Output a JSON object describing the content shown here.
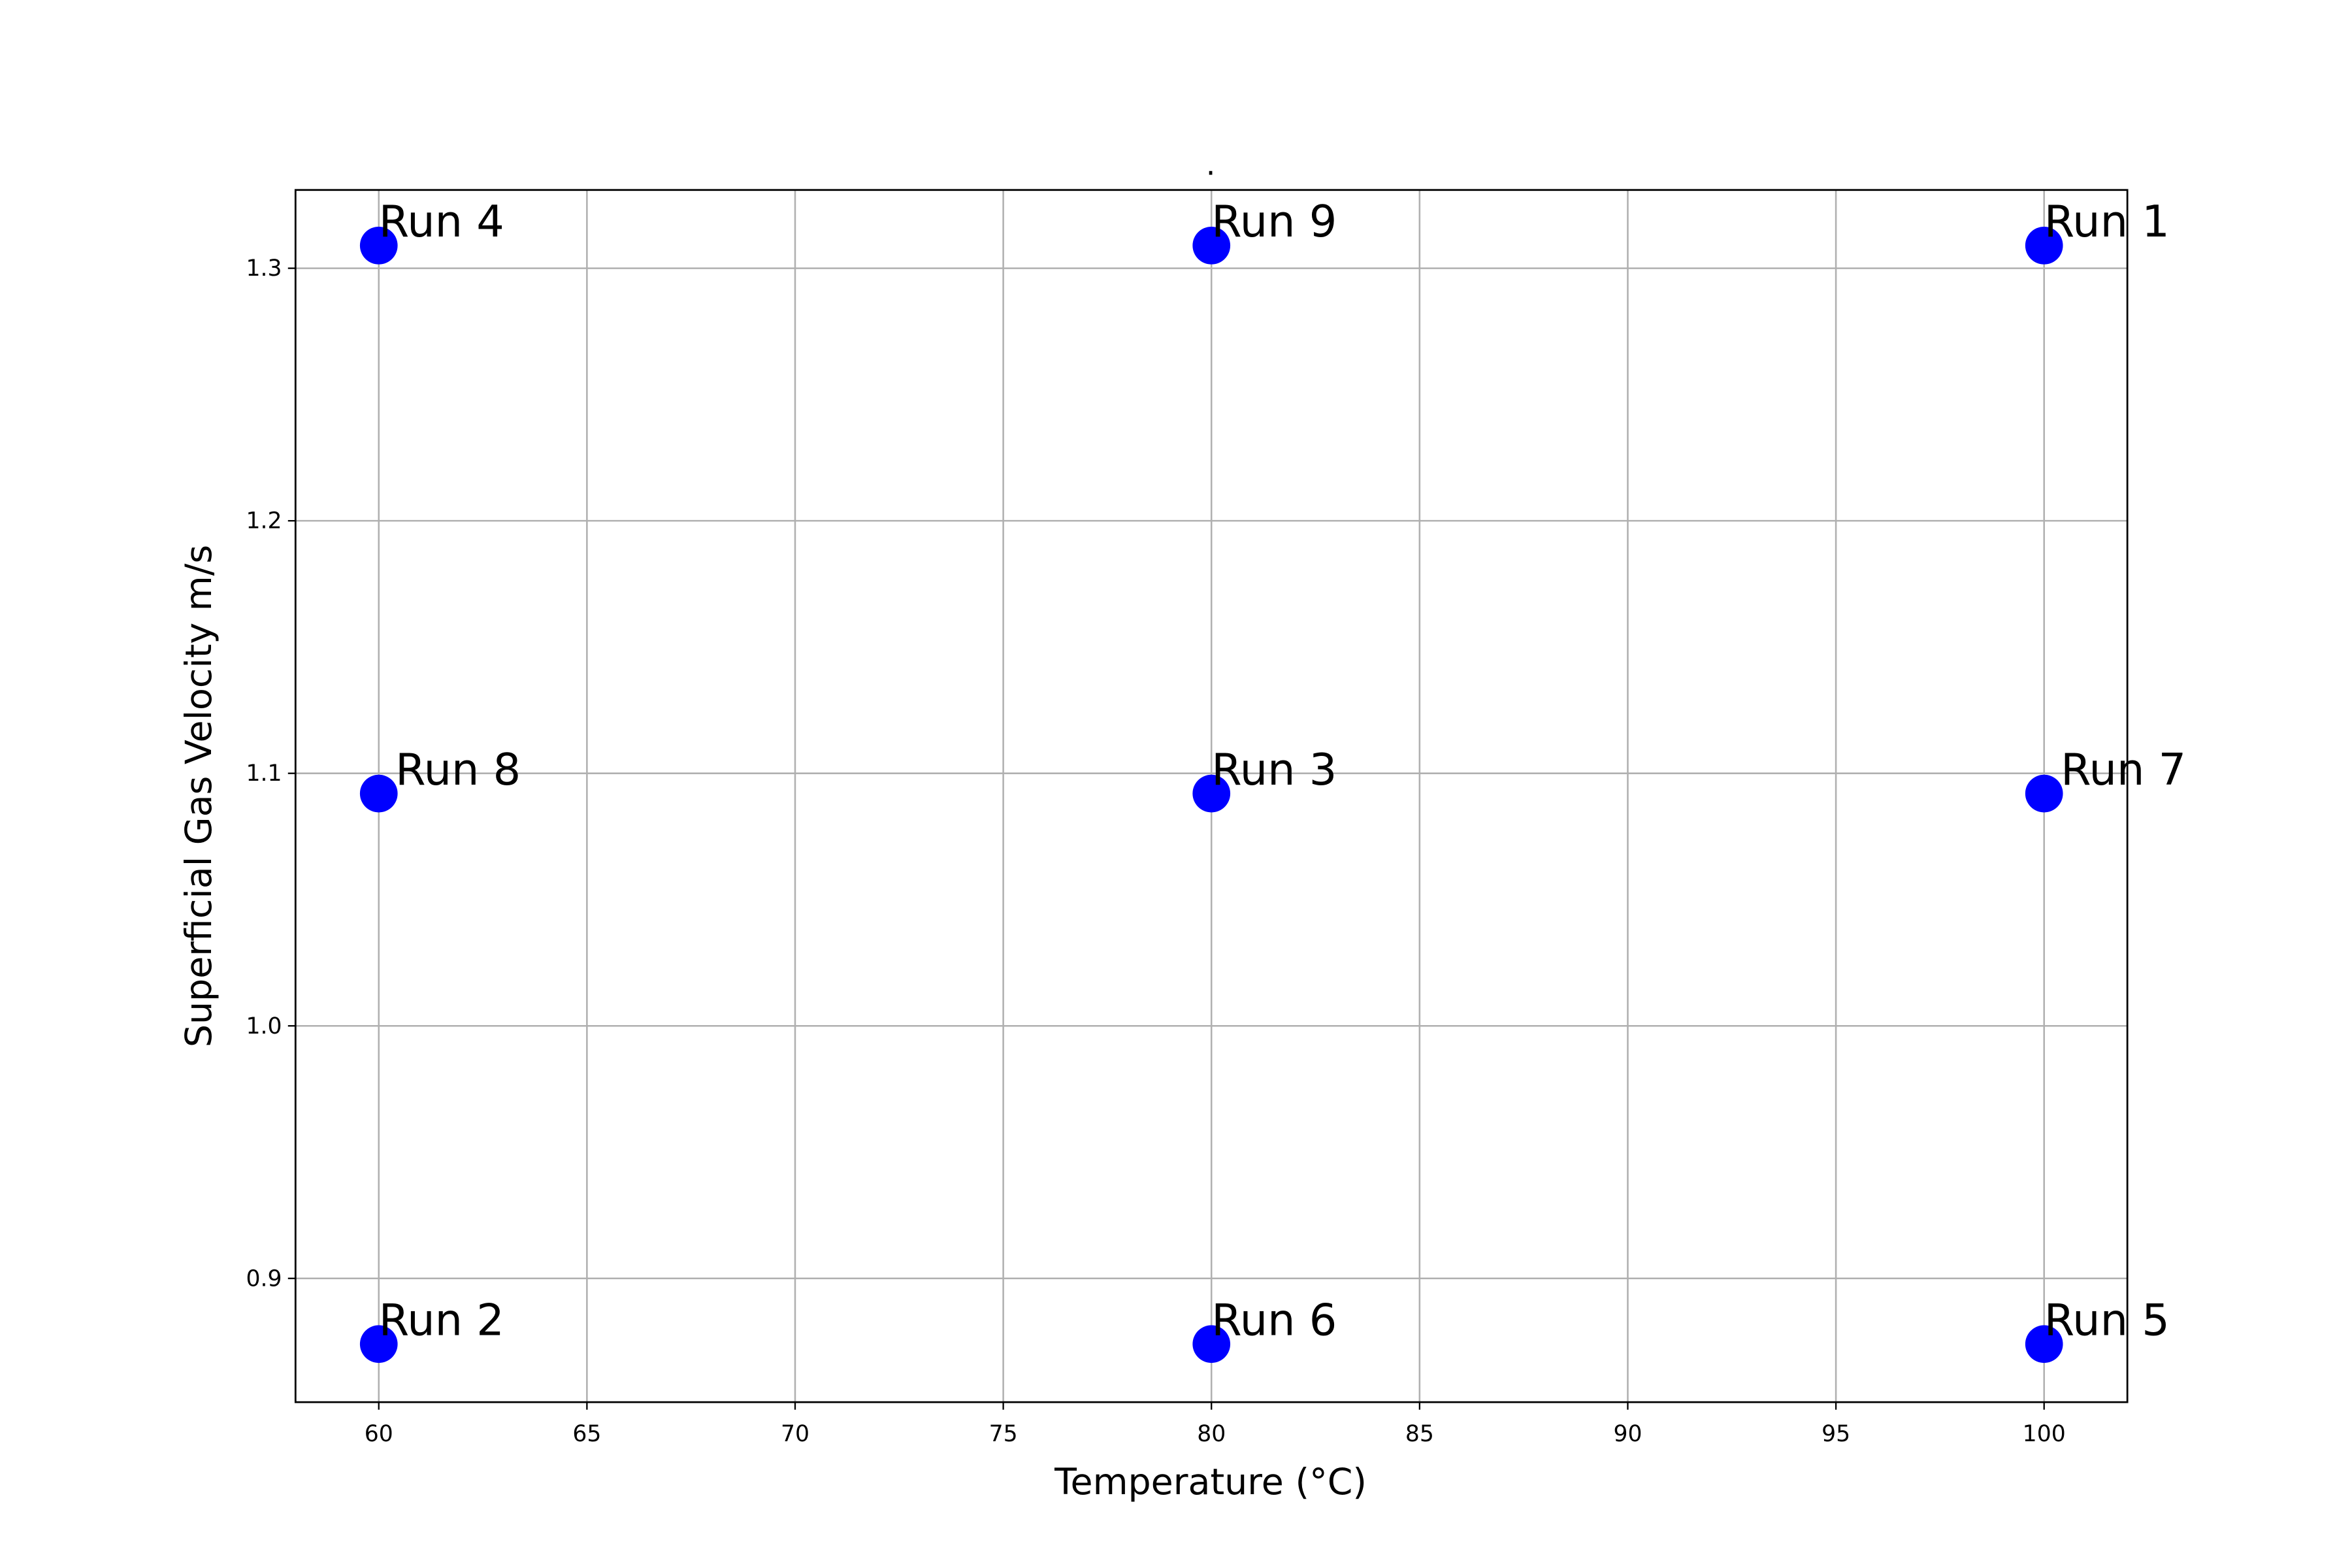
{
  "chart_data": {
    "type": "scatter",
    "title": ".",
    "xlabel": "Temperature (°C)",
    "ylabel": "Superficial Gas Velocity m/s",
    "xlim": [
      58,
      102
    ],
    "ylim": [
      0.851,
      1.331
    ],
    "xticks": [
      60,
      65,
      70,
      75,
      80,
      85,
      90,
      95,
      100
    ],
    "xtick_labels": [
      "60",
      "65",
      "70",
      "75",
      "80",
      "85",
      "90",
      "95",
      "100"
    ],
    "yticks": [
      0.9,
      1.0,
      1.1,
      1.2,
      1.3
    ],
    "ytick_labels": [
      "0.9",
      "1.0",
      "1.1",
      "1.2",
      "1.3"
    ],
    "grid": true,
    "marker_color": "#0000ff",
    "points": [
      {
        "label": "Run 1",
        "x": 100,
        "y": 1.309
      },
      {
        "label": "Run 2",
        "x": 60,
        "y": 0.874
      },
      {
        "label": "Run 3",
        "x": 80,
        "y": 1.092
      },
      {
        "label": "Run 4",
        "x": 60,
        "y": 1.309
      },
      {
        "label": "Run 5",
        "x": 100,
        "y": 0.874
      },
      {
        "label": "Run 6",
        "x": 80,
        "y": 0.874
      },
      {
        "label": "Run 7",
        "x": 100,
        "y": 1.092
      },
      {
        "label": "Run 8",
        "x": 60,
        "y": 1.092
      },
      {
        "label": "Run 9",
        "x": 80,
        "y": 1.309
      }
    ]
  }
}
